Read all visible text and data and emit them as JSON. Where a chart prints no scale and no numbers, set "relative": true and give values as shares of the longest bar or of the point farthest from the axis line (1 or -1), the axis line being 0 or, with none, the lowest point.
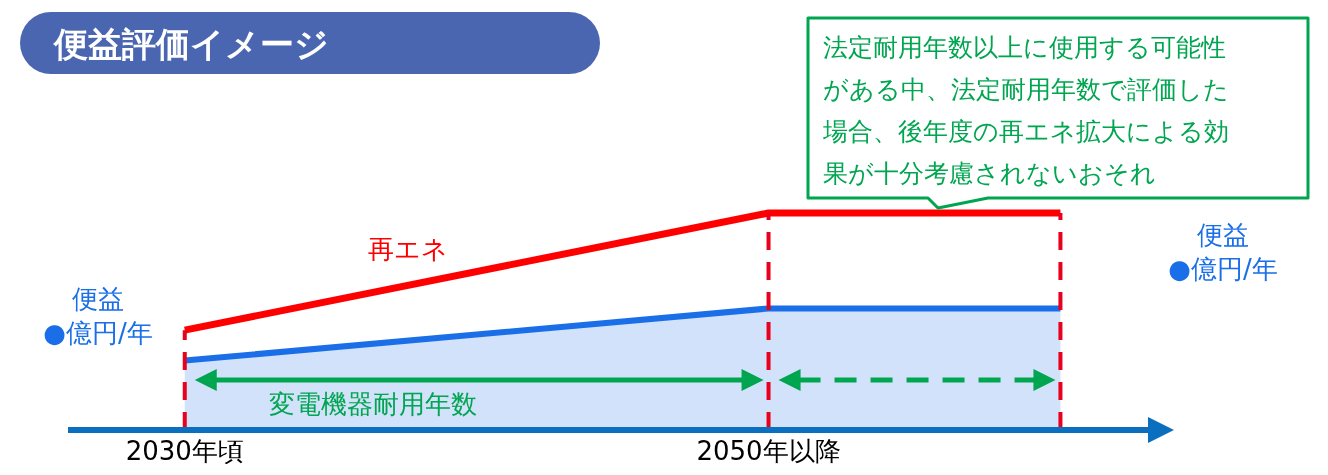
{
  "chart_data": {
    "type": "line",
    "title": "便益評価イメージ",
    "relative": true,
    "x": [
      2030,
      2050,
      2060
    ],
    "xlim": [
      2026,
      2063
    ],
    "xticks": [
      {
        "value": 2030,
        "label": "2030年頃"
      },
      {
        "value": 2050,
        "label": "2050年以降"
      }
    ],
    "series": [
      {
        "name": "再エネ",
        "color": "#ff0000",
        "values": [
          0.46,
          1,
          1
        ]
      },
      {
        "type": "area",
        "color": "#1a6fe8",
        "values": [
          0.32,
          0.56,
          0.56
        ]
      }
    ],
    "ref_lines": [
      {
        "axis": "x",
        "value": 2030,
        "color": "#e8001c",
        "line_style": "dashed"
      },
      {
        "axis": "x",
        "value": 2050,
        "color": "#e8001c",
        "line_style": "dashed"
      },
      {
        "axis": "x",
        "value": 2060,
        "color": "#e8001c",
        "line_style": "dashed"
      }
    ],
    "annotations": [
      "便益",
      "●億円/年",
      "便益",
      "●億円/年",
      "変電機器耐用年数",
      "法定耐用年数以上に使用する可能性がある中、法定耐用年数で評価した場合、後年度の再エネ拡大による効果が十分考慮されないおそれ"
    ]
  }
}
